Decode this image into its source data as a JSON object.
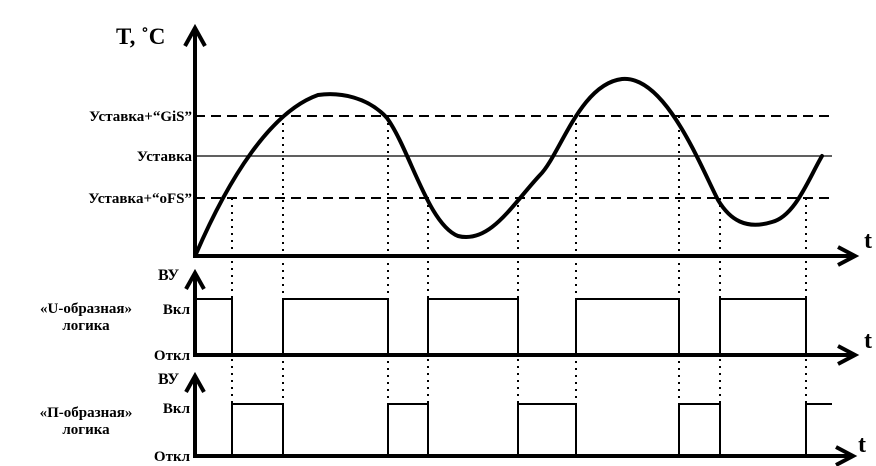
{
  "top_chart": {
    "y_axis_label": "T, ˚C",
    "x_axis_label": "t",
    "thresholds": {
      "upper": "Уставка+“GiS”",
      "setpoint": "Уставка",
      "lower": "Уставка+“oFS”"
    }
  },
  "u_logic": {
    "title_line1": "«U-образная»",
    "title_line2": "логика",
    "y_axis_label": "ВУ",
    "on_label": "Вкл",
    "off_label": "Откл",
    "x_axis_label": "t"
  },
  "p_logic": {
    "title_line1": "«П-образная»",
    "title_line2": "логика",
    "y_axis_label": "ВУ",
    "on_label": "Вкл",
    "off_label": "Откл",
    "x_axis_label": "t"
  }
}
